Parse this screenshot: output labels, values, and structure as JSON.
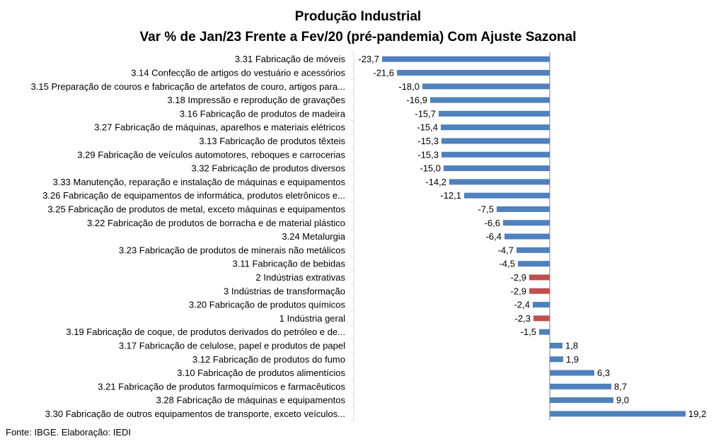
{
  "chart_data": {
    "type": "bar",
    "orientation": "horizontal",
    "title": "Produção Industrial",
    "subtitle": "Var % de Jan/23 Frente a Fev/20 (pré-pandemia) Com Ajuste Sazonal",
    "categories": [
      "3.31 Fabricação de móveis",
      "3.14 Confecção de artigos do vestuário e acessórios",
      "3.15 Preparação de couros e fabricação de artefatos de couro, artigos para...",
      "3.18 Impressão e reprodução de gravações",
      "3.16 Fabricação de produtos de madeira",
      "3.27 Fabricação de máquinas, aparelhos e materiais elétricos",
      "3.13 Fabricação de produtos têxteis",
      "3.29 Fabricação de veículos automotores, reboques e carrocerias",
      "3.32 Fabricação de produtos diversos",
      "3.33 Manutenção, reparação e instalação de máquinas e equipamentos",
      "3.26 Fabricação de equipamentos de informática, produtos eletrônicos e...",
      "3.25 Fabricação de produtos de metal, exceto máquinas e equipamentos",
      "3.22 Fabricação de produtos de borracha e de material plástico",
      "3.24 Metalurgia",
      "3.23 Fabricação de produtos de minerais não metálicos",
      "3.11 Fabricação de bebidas",
      "2 Indústrias extrativas",
      "3 Indústrias de transformação",
      "3.20 Fabricação de produtos químicos",
      "1 Indústria geral",
      "3.19 Fabricação de coque, de produtos derivados do petróleo e de...",
      "3.17 Fabricação de celulose, papel e produtos de papel",
      "3.12 Fabricação de produtos do fumo",
      "3.10 Fabricação de produtos alimentícios",
      "3.21 Fabricação de produtos farmoquímicos e farmacêuticos",
      "3.28 Fabricação de máquinas e equipamentos",
      "3.30 Fabricação de outros equipamentos de transporte, exceto veículos..."
    ],
    "values": [
      -23.7,
      -21.6,
      -18.0,
      -16.9,
      -15.7,
      -15.4,
      -15.3,
      -15.3,
      -15.0,
      -14.2,
      -12.1,
      -7.5,
      -6.6,
      -6.4,
      -4.7,
      -4.5,
      -2.9,
      -2.9,
      -2.4,
      -2.3,
      -1.5,
      1.8,
      1.9,
      6.3,
      8.7,
      9.0,
      19.2
    ],
    "value_labels": [
      "-23,7",
      "-21,6",
      "-18,0",
      "-16,9",
      "-15,7",
      "-15,4",
      "-15,3",
      "-15,3",
      "-15,0",
      "-14,2",
      "-12,1",
      "-7,5",
      "-6,6",
      "-6,4",
      "-4,7",
      "-4,5",
      "-2,9",
      "-2,9",
      "-2,4",
      "-2,3",
      "-1,5",
      "1,8",
      "1,9",
      "6,3",
      "8,7",
      "9,0",
      "19,2"
    ],
    "highlighted": [
      "2 Indústrias extrativas",
      "3 Indústrias de transformação",
      "1 Indústria geral"
    ],
    "xlim": [
      -26,
      20
    ],
    "grid": false,
    "legend": "none",
    "colors": {
      "bar": "#4F81BD",
      "highlight": "#C0504D",
      "axis": "#808080",
      "gridline": "#D9D9D9"
    }
  },
  "source": "Fonte: IBGE. Elaboração: IEDI"
}
